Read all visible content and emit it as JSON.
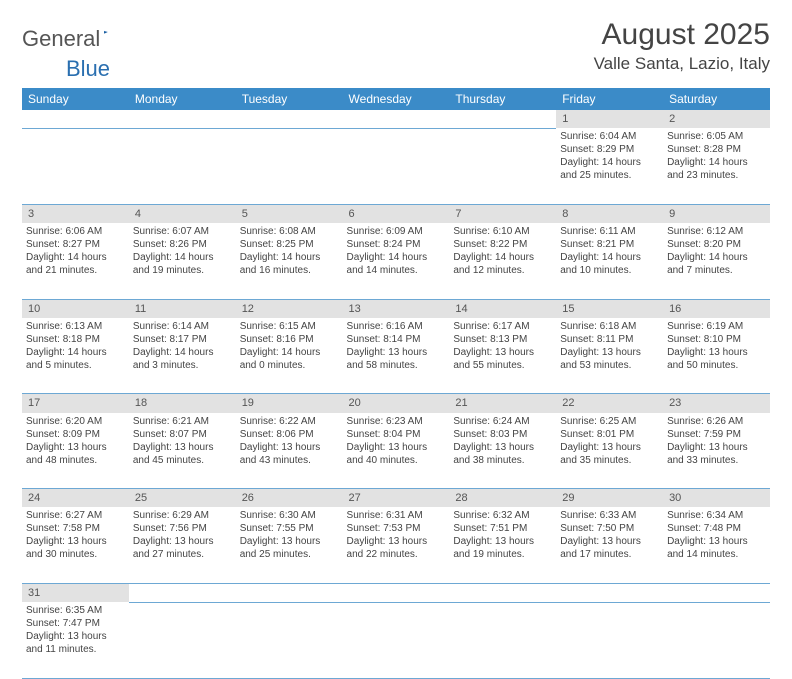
{
  "logo": {
    "word1": "General",
    "word2": "Blue"
  },
  "title": "August 2025",
  "location": "Valle Santa, Lazio, Italy",
  "colors": {
    "header_bg": "#3b8bc8",
    "header_text": "#ffffff",
    "daynum_bg": "#e2e2e2",
    "cell_border": "#6da8d4",
    "page_bg": "#ffffff",
    "logo_accent": "#2a6fb0"
  },
  "day_headers": [
    "Sunday",
    "Monday",
    "Tuesday",
    "Wednesday",
    "Thursday",
    "Friday",
    "Saturday"
  ],
  "weeks": [
    [
      null,
      null,
      null,
      null,
      null,
      {
        "n": "1",
        "sr": "Sunrise: 6:04 AM",
        "ss": "Sunset: 8:29 PM",
        "d1": "Daylight: 14 hours",
        "d2": "and 25 minutes."
      },
      {
        "n": "2",
        "sr": "Sunrise: 6:05 AM",
        "ss": "Sunset: 8:28 PM",
        "d1": "Daylight: 14 hours",
        "d2": "and 23 minutes."
      }
    ],
    [
      {
        "n": "3",
        "sr": "Sunrise: 6:06 AM",
        "ss": "Sunset: 8:27 PM",
        "d1": "Daylight: 14 hours",
        "d2": "and 21 minutes."
      },
      {
        "n": "4",
        "sr": "Sunrise: 6:07 AM",
        "ss": "Sunset: 8:26 PM",
        "d1": "Daylight: 14 hours",
        "d2": "and 19 minutes."
      },
      {
        "n": "5",
        "sr": "Sunrise: 6:08 AM",
        "ss": "Sunset: 8:25 PM",
        "d1": "Daylight: 14 hours",
        "d2": "and 16 minutes."
      },
      {
        "n": "6",
        "sr": "Sunrise: 6:09 AM",
        "ss": "Sunset: 8:24 PM",
        "d1": "Daylight: 14 hours",
        "d2": "and 14 minutes."
      },
      {
        "n": "7",
        "sr": "Sunrise: 6:10 AM",
        "ss": "Sunset: 8:22 PM",
        "d1": "Daylight: 14 hours",
        "d2": "and 12 minutes."
      },
      {
        "n": "8",
        "sr": "Sunrise: 6:11 AM",
        "ss": "Sunset: 8:21 PM",
        "d1": "Daylight: 14 hours",
        "d2": "and 10 minutes."
      },
      {
        "n": "9",
        "sr": "Sunrise: 6:12 AM",
        "ss": "Sunset: 8:20 PM",
        "d1": "Daylight: 14 hours",
        "d2": "and 7 minutes."
      }
    ],
    [
      {
        "n": "10",
        "sr": "Sunrise: 6:13 AM",
        "ss": "Sunset: 8:18 PM",
        "d1": "Daylight: 14 hours",
        "d2": "and 5 minutes."
      },
      {
        "n": "11",
        "sr": "Sunrise: 6:14 AM",
        "ss": "Sunset: 8:17 PM",
        "d1": "Daylight: 14 hours",
        "d2": "and 3 minutes."
      },
      {
        "n": "12",
        "sr": "Sunrise: 6:15 AM",
        "ss": "Sunset: 8:16 PM",
        "d1": "Daylight: 14 hours",
        "d2": "and 0 minutes."
      },
      {
        "n": "13",
        "sr": "Sunrise: 6:16 AM",
        "ss": "Sunset: 8:14 PM",
        "d1": "Daylight: 13 hours",
        "d2": "and 58 minutes."
      },
      {
        "n": "14",
        "sr": "Sunrise: 6:17 AM",
        "ss": "Sunset: 8:13 PM",
        "d1": "Daylight: 13 hours",
        "d2": "and 55 minutes."
      },
      {
        "n": "15",
        "sr": "Sunrise: 6:18 AM",
        "ss": "Sunset: 8:11 PM",
        "d1": "Daylight: 13 hours",
        "d2": "and 53 minutes."
      },
      {
        "n": "16",
        "sr": "Sunrise: 6:19 AM",
        "ss": "Sunset: 8:10 PM",
        "d1": "Daylight: 13 hours",
        "d2": "and 50 minutes."
      }
    ],
    [
      {
        "n": "17",
        "sr": "Sunrise: 6:20 AM",
        "ss": "Sunset: 8:09 PM",
        "d1": "Daylight: 13 hours",
        "d2": "and 48 minutes."
      },
      {
        "n": "18",
        "sr": "Sunrise: 6:21 AM",
        "ss": "Sunset: 8:07 PM",
        "d1": "Daylight: 13 hours",
        "d2": "and 45 minutes."
      },
      {
        "n": "19",
        "sr": "Sunrise: 6:22 AM",
        "ss": "Sunset: 8:06 PM",
        "d1": "Daylight: 13 hours",
        "d2": "and 43 minutes."
      },
      {
        "n": "20",
        "sr": "Sunrise: 6:23 AM",
        "ss": "Sunset: 8:04 PM",
        "d1": "Daylight: 13 hours",
        "d2": "and 40 minutes."
      },
      {
        "n": "21",
        "sr": "Sunrise: 6:24 AM",
        "ss": "Sunset: 8:03 PM",
        "d1": "Daylight: 13 hours",
        "d2": "and 38 minutes."
      },
      {
        "n": "22",
        "sr": "Sunrise: 6:25 AM",
        "ss": "Sunset: 8:01 PM",
        "d1": "Daylight: 13 hours",
        "d2": "and 35 minutes."
      },
      {
        "n": "23",
        "sr": "Sunrise: 6:26 AM",
        "ss": "Sunset: 7:59 PM",
        "d1": "Daylight: 13 hours",
        "d2": "and 33 minutes."
      }
    ],
    [
      {
        "n": "24",
        "sr": "Sunrise: 6:27 AM",
        "ss": "Sunset: 7:58 PM",
        "d1": "Daylight: 13 hours",
        "d2": "and 30 minutes."
      },
      {
        "n": "25",
        "sr": "Sunrise: 6:29 AM",
        "ss": "Sunset: 7:56 PM",
        "d1": "Daylight: 13 hours",
        "d2": "and 27 minutes."
      },
      {
        "n": "26",
        "sr": "Sunrise: 6:30 AM",
        "ss": "Sunset: 7:55 PM",
        "d1": "Daylight: 13 hours",
        "d2": "and 25 minutes."
      },
      {
        "n": "27",
        "sr": "Sunrise: 6:31 AM",
        "ss": "Sunset: 7:53 PM",
        "d1": "Daylight: 13 hours",
        "d2": "and 22 minutes."
      },
      {
        "n": "28",
        "sr": "Sunrise: 6:32 AM",
        "ss": "Sunset: 7:51 PM",
        "d1": "Daylight: 13 hours",
        "d2": "and 19 minutes."
      },
      {
        "n": "29",
        "sr": "Sunrise: 6:33 AM",
        "ss": "Sunset: 7:50 PM",
        "d1": "Daylight: 13 hours",
        "d2": "and 17 minutes."
      },
      {
        "n": "30",
        "sr": "Sunrise: 6:34 AM",
        "ss": "Sunset: 7:48 PM",
        "d1": "Daylight: 13 hours",
        "d2": "and 14 minutes."
      }
    ],
    [
      {
        "n": "31",
        "sr": "Sunrise: 6:35 AM",
        "ss": "Sunset: 7:47 PM",
        "d1": "Daylight: 13 hours",
        "d2": "and 11 minutes."
      },
      null,
      null,
      null,
      null,
      null,
      null
    ]
  ]
}
